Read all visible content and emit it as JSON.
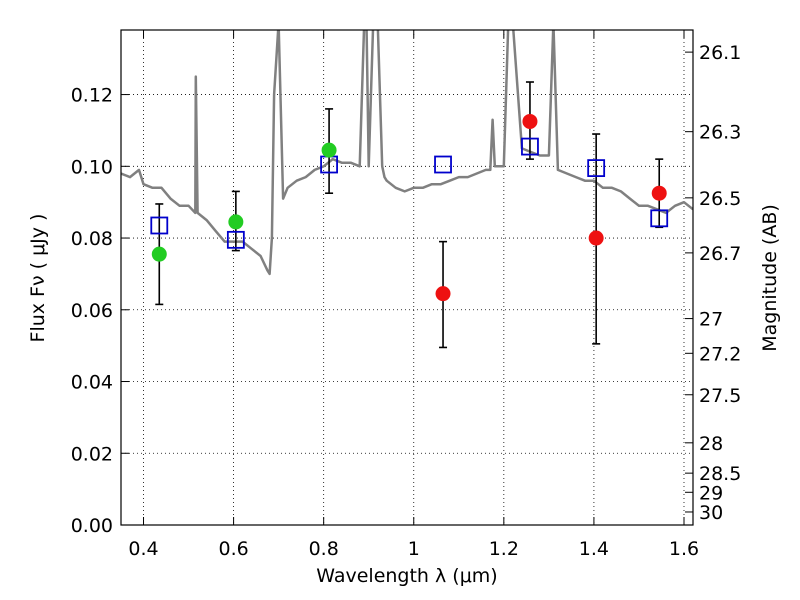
{
  "chart_data": {
    "type": "scatter",
    "xlabel": "Wavelength  λ (μm)",
    "ylabel": "Flux  Fν  ( μJy )",
    "y2label": "Magnitude (AB)",
    "xlim": [
      0.35,
      1.62
    ],
    "ylim": [
      0.0,
      0.138
    ],
    "grid": true,
    "grid_style": "dotted",
    "x_ticks": [
      {
        "value": 0.4,
        "label": "0.4"
      },
      {
        "value": 0.6,
        "label": "0.6"
      },
      {
        "value": 0.8,
        "label": "0.8"
      },
      {
        "value": 1.0,
        "label": "1"
      },
      {
        "value": 1.2,
        "label": "1.2"
      },
      {
        "value": 1.4,
        "label": "1.4"
      },
      {
        "value": 1.6,
        "label": "1.6"
      }
    ],
    "y_ticks": [
      {
        "value": 0.0,
        "label": "0.00"
      },
      {
        "value": 0.02,
        "label": "0.02"
      },
      {
        "value": 0.04,
        "label": "0.04"
      },
      {
        "value": 0.06,
        "label": "0.06"
      },
      {
        "value": 0.08,
        "label": "0.08"
      },
      {
        "value": 0.1,
        "label": "0.10"
      },
      {
        "value": 0.12,
        "label": "0.12"
      }
    ],
    "y2_ticks": [
      {
        "mag": 26.1,
        "label": "26.1"
      },
      {
        "mag": 26.3,
        "label": "26.3"
      },
      {
        "mag": 26.5,
        "label": "26.5"
      },
      {
        "mag": 26.7,
        "label": "26.7"
      },
      {
        "mag": 27.0,
        "label": "27"
      },
      {
        "mag": 27.2,
        "label": "27.2"
      },
      {
        "mag": 27.5,
        "label": "27.5"
      },
      {
        "mag": 28.0,
        "label": "28"
      },
      {
        "mag": 28.5,
        "label": "28.5"
      },
      {
        "mag": 29.0,
        "label": "29"
      },
      {
        "mag": 30.0,
        "label": "30"
      }
    ],
    "colors": {
      "template": "#808080",
      "green_points": "#22cc22",
      "red_points": "#ee1111",
      "model_squares": "#0000cc",
      "errorbars": "#000000"
    },
    "series": [
      {
        "kind": "template_spectrum",
        "x": [
          0.35,
          0.37,
          0.39,
          0.4,
          0.42,
          0.44,
          0.46,
          0.48,
          0.5,
          0.515,
          0.516,
          0.52,
          0.54,
          0.56,
          0.58,
          0.6,
          0.62,
          0.64,
          0.66,
          0.675,
          0.68,
          0.685,
          0.69,
          0.7,
          0.71,
          0.72,
          0.74,
          0.76,
          0.78,
          0.8,
          0.82,
          0.84,
          0.86,
          0.88,
          0.89,
          0.895,
          0.9,
          0.91,
          0.92,
          0.93,
          0.935,
          0.94,
          0.96,
          0.98,
          1.0,
          1.02,
          1.04,
          1.06,
          1.08,
          1.1,
          1.12,
          1.14,
          1.16,
          1.17,
          1.175,
          1.18,
          1.2,
          1.21,
          1.22,
          1.24,
          1.26,
          1.28,
          1.3,
          1.31,
          1.32,
          1.34,
          1.36,
          1.38,
          1.4,
          1.42,
          1.44,
          1.46,
          1.48,
          1.5,
          1.52,
          1.54,
          1.56,
          1.58,
          1.6,
          1.62
        ],
        "y": [
          0.098,
          0.097,
          0.099,
          0.095,
          0.094,
          0.094,
          0.091,
          0.089,
          0.089,
          0.087,
          0.125,
          0.087,
          0.085,
          0.082,
          0.079,
          0.079,
          0.079,
          0.077,
          0.075,
          0.071,
          0.07,
          0.08,
          0.12,
          0.14,
          0.091,
          0.094,
          0.096,
          0.097,
          0.099,
          0.1,
          0.102,
          0.101,
          0.101,
          0.1,
          0.14,
          0.14,
          0.1,
          0.14,
          0.14,
          0.1,
          0.097,
          0.096,
          0.094,
          0.093,
          0.094,
          0.094,
          0.095,
          0.095,
          0.096,
          0.097,
          0.097,
          0.098,
          0.099,
          0.099,
          0.113,
          0.1,
          0.1,
          0.14,
          0.14,
          0.105,
          0.104,
          0.103,
          0.103,
          0.14,
          0.099,
          0.098,
          0.097,
          0.096,
          0.096,
          0.094,
          0.094,
          0.093,
          0.091,
          0.089,
          0.089,
          0.088,
          0.087,
          0.089,
          0.09,
          0.088
        ]
      },
      {
        "kind": "observed_green",
        "points": [
          {
            "x": 0.435,
            "y": 0.0755,
            "err_low": 0.0615,
            "err_high": 0.0895
          },
          {
            "x": 0.605,
            "y": 0.0845,
            "err_low": 0.0765,
            "err_high": 0.093
          },
          {
            "x": 0.812,
            "y": 0.1045,
            "err_low": 0.0925,
            "err_high": 0.116
          }
        ]
      },
      {
        "kind": "observed_red",
        "points": [
          {
            "x": 1.065,
            "y": 0.0645,
            "err_low": 0.0495,
            "err_high": 0.079
          },
          {
            "x": 1.258,
            "y": 0.1125,
            "err_low": 0.102,
            "err_high": 0.1235
          },
          {
            "x": 1.405,
            "y": 0.08,
            "err_low": 0.0505,
            "err_high": 0.109
          },
          {
            "x": 1.545,
            "y": 0.0925,
            "err_low": 0.083,
            "err_high": 0.102
          }
        ]
      },
      {
        "kind": "model_squares",
        "points": [
          {
            "x": 0.435,
            "y": 0.0835
          },
          {
            "x": 0.605,
            "y": 0.0795
          },
          {
            "x": 0.812,
            "y": 0.1005
          },
          {
            "x": 1.065,
            "y": 0.1005
          },
          {
            "x": 1.258,
            "y": 0.1055
          },
          {
            "x": 1.405,
            "y": 0.0995
          },
          {
            "x": 1.545,
            "y": 0.0855
          }
        ]
      }
    ]
  }
}
